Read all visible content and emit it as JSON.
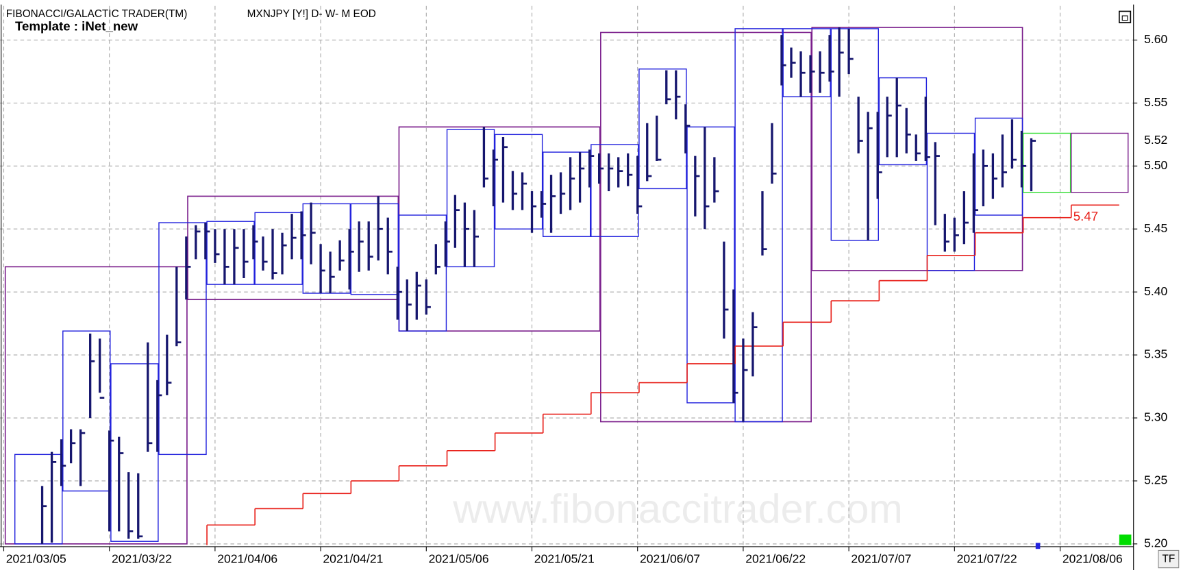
{
  "chart_data": {
    "type": "hlc",
    "title": "FIBONACCI/GALACTIC TRADER(TM)",
    "subtitle": "MXNJPY [Y!] D- W- M EOD",
    "template": "Template : iNet_new",
    "watermark": "www.fibonaccitrader.com",
    "button": "TF",
    "last_price": 5.52,
    "annotation": 5.47,
    "ylim": [
      5.199,
      5.627
    ],
    "yticks": [
      {
        "value": 5.2,
        "label": "5.20"
      },
      5.25,
      {
        "value": 5.3,
        "label": "5.30"
      },
      5.35,
      {
        "value": 5.4,
        "label": "5.40"
      },
      5.45,
      {
        "value": 5.5,
        "label": "5.50"
      },
      5.55,
      {
        "value": 5.6,
        "label": "5.60"
      }
    ],
    "xticks": [
      "2021/03/05",
      "2021/03/22",
      "2021/04/06",
      "2021/04/21",
      "2021/05/06",
      "2021/05/21",
      "2021/06/07",
      "2021/06/22",
      "2021/07/07",
      "2021/07/22",
      "2021/08/06"
    ],
    "grid": true,
    "bar_color": "#16166e",
    "categories": [
      "2021/03/05",
      "2021/03/08",
      "2021/03/09",
      "2021/03/10",
      "2021/03/11",
      "2021/03/12",
      "2021/03/15",
      "2021/03/16",
      "2021/03/17",
      "2021/03/18",
      "2021/03/19",
      "2021/03/22",
      "2021/03/23",
      "2021/03/24",
      "2021/03/25",
      "2021/03/26",
      "2021/03/29",
      "2021/03/30",
      "2021/03/31",
      "2021/04/01",
      "2021/04/02",
      "2021/04/05",
      "2021/04/06",
      "2021/04/07",
      "2021/04/08",
      "2021/04/09",
      "2021/04/12",
      "2021/04/13",
      "2021/04/14",
      "2021/04/15",
      "2021/04/16",
      "2021/04/19",
      "2021/04/20",
      "2021/04/21",
      "2021/04/22",
      "2021/04/23",
      "2021/04/26",
      "2021/04/27",
      "2021/04/28",
      "2021/04/29",
      "2021/04/30",
      "2021/05/03",
      "2021/05/04",
      "2021/05/05",
      "2021/05/06",
      "2021/05/07",
      "2021/05/10",
      "2021/05/11",
      "2021/05/12",
      "2021/05/13",
      "2021/05/14",
      "2021/05/17",
      "2021/05/18",
      "2021/05/19",
      "2021/05/20",
      "2021/05/21",
      "2021/05/24",
      "2021/05/25",
      "2021/05/26",
      "2021/05/27",
      "2021/05/28",
      "2021/05/31",
      "2021/06/01",
      "2021/06/02",
      "2021/06/03",
      "2021/06/04",
      "2021/06/07",
      "2021/06/08",
      "2021/06/09",
      "2021/06/10",
      "2021/06/11",
      "2021/06/14",
      "2021/06/15",
      "2021/06/16",
      "2021/06/17",
      "2021/06/18",
      "2021/06/21",
      "2021/06/22",
      "2021/06/23",
      "2021/06/24",
      "2021/06/25",
      "2021/06/28",
      "2021/06/29",
      "2021/06/30",
      "2021/07/01",
      "2021/07/02",
      "2021/07/05",
      "2021/07/06",
      "2021/07/07",
      "2021/07/08",
      "2021/07/09",
      "2021/07/12",
      "2021/07/13",
      "2021/07/14",
      "2021/07/15",
      "2021/07/16",
      "2021/07/19",
      "2021/07/20",
      "2021/07/21",
      "2021/07/22",
      "2021/07/23",
      "2021/07/26",
      "2021/07/27",
      "2021/07/28",
      "2021/07/29",
      "2021/07/30",
      "2021/08/02",
      "2021/08/03",
      "2021/08/04",
      "2021/08/05",
      "2021/08/06",
      "2021/08/09",
      "2021/08/10",
      "2021/08/11",
      "2021/08/12",
      "2021/08/13",
      "2021/08/16",
      "2021/08/17"
    ],
    "high": [
      null,
      null,
      null,
      null,
      5.246,
      5.273,
      5.283,
      5.291,
      5.291,
      5.367,
      5.363,
      5.29,
      5.285,
      5.257,
      5.256,
      5.36,
      5.33,
      5.366,
      5.42,
      5.444,
      5.453,
      5.455,
      5.45,
      5.45,
      5.45,
      5.45,
      5.453,
      5.444,
      5.45,
      5.447,
      5.462,
      5.464,
      5.471,
      5.438,
      5.432,
      5.441,
      5.45,
      5.456,
      5.456,
      5.476,
      5.459,
      5.42,
      5.41,
      5.416,
      5.41,
      5.438,
      5.456,
      5.477,
      5.471,
      5.465,
      5.531,
      5.513,
      5.523,
      5.496,
      5.495,
      5.48,
      5.48,
      5.493,
      5.495,
      5.507,
      5.511,
      5.513,
      5.51,
      5.51,
      5.507,
      5.51,
      5.508,
      5.534,
      5.54,
      5.576,
      5.576,
      5.549,
      5.508,
      5.531,
      5.507,
      5.44,
      5.402,
      5.363,
      5.384,
      5.48,
      5.534,
      5.604,
      5.594,
      5.591,
      5.588,
      5.591,
      5.604,
      5.61,
      5.609,
      5.555,
      5.543,
      5.543,
      5.555,
      5.57,
      5.546,
      5.525,
      5.555,
      5.519,
      5.462,
      5.459,
      5.48,
      5.51,
      5.513,
      5.51,
      5.525,
      5.537,
      5.528,
      5.522,
      null,
      null,
      null,
      null,
      null,
      null,
      null,
      null,
      null,
      null
    ],
    "low": [
      null,
      null,
      null,
      null,
      5.2,
      5.201,
      5.246,
      5.264,
      5.246,
      5.3,
      5.32,
      5.21,
      5.21,
      5.204,
      5.204,
      5.273,
      5.273,
      5.318,
      5.357,
      5.394,
      5.426,
      5.426,
      5.423,
      5.406,
      5.406,
      5.411,
      5.426,
      5.417,
      5.41,
      5.414,
      5.426,
      5.426,
      5.422,
      5.399,
      5.399,
      5.417,
      5.402,
      5.416,
      5.417,
      5.425,
      5.414,
      5.378,
      5.369,
      5.378,
      5.382,
      5.414,
      5.42,
      5.435,
      5.42,
      5.42,
      5.483,
      5.468,
      5.471,
      5.465,
      5.465,
      5.447,
      5.459,
      5.447,
      5.462,
      5.465,
      5.471,
      5.483,
      5.486,
      5.48,
      5.483,
      5.484,
      5.462,
      5.488,
      5.504,
      5.549,
      5.537,
      5.51,
      5.46,
      5.45,
      5.471,
      5.363,
      5.312,
      5.297,
      5.333,
      5.429,
      5.486,
      5.564,
      5.57,
      5.555,
      5.558,
      5.558,
      5.567,
      5.555,
      5.573,
      5.51,
      5.441,
      5.474,
      5.507,
      5.507,
      5.51,
      5.504,
      5.504,
      5.453,
      5.432,
      5.432,
      5.438,
      5.447,
      5.468,
      5.474,
      5.483,
      5.498,
      5.483,
      5.48,
      null,
      null,
      null,
      null,
      null,
      null,
      null,
      null,
      null,
      null
    ],
    "close": [
      null,
      null,
      null,
      null,
      5.23,
      5.265,
      5.262,
      5.28,
      5.288,
      5.345,
      5.316,
      5.282,
      5.272,
      5.21,
      5.206,
      5.28,
      5.318,
      5.328,
      5.36,
      5.42,
      5.448,
      5.448,
      5.43,
      5.42,
      5.435,
      5.424,
      5.44,
      5.424,
      5.415,
      5.437,
      5.443,
      5.445,
      5.447,
      5.417,
      5.412,
      5.425,
      5.432,
      5.44,
      5.428,
      5.45,
      5.432,
      5.4,
      5.39,
      5.405,
      5.388,
      5.42,
      5.44,
      5.465,
      5.45,
      5.444,
      5.49,
      5.505,
      5.515,
      5.478,
      5.486,
      5.468,
      5.47,
      5.476,
      5.478,
      5.49,
      5.498,
      5.508,
      5.498,
      5.498,
      5.496,
      5.493,
      5.468,
      5.492,
      5.505,
      5.553,
      5.555,
      5.532,
      5.492,
      5.468,
      5.48,
      5.386,
      5.32,
      5.338,
      5.372,
      5.434,
      5.494,
      5.58,
      5.582,
      5.574,
      5.575,
      5.574,
      5.575,
      5.59,
      5.585,
      5.52,
      5.53,
      5.495,
      5.54,
      5.548,
      5.525,
      5.51,
      5.507,
      5.508,
      5.44,
      5.445,
      5.455,
      5.465,
      5.5,
      5.49,
      5.495,
      5.505,
      5.5,
      5.52,
      null,
      null,
      null,
      null,
      null,
      null,
      null,
      null,
      null,
      null
    ],
    "week_color": "#2222dd",
    "weekly_boxes": [
      {
        "start": "2021/03/08",
        "end": "2021/03/15",
        "high": 5.271,
        "low": 5.2
      },
      {
        "start": "2021/03/15",
        "end": "2021/03/22",
        "high": 5.369,
        "low": 5.242
      },
      {
        "start": "2021/03/22",
        "end": "2021/03/29",
        "high": 5.343,
        "low": 5.202
      },
      {
        "start": "2021/03/29",
        "end": "2021/04/05",
        "high": 5.455,
        "low": 5.271
      },
      {
        "start": "2021/04/05",
        "end": "2021/04/12",
        "high": 5.456,
        "low": 5.406
      },
      {
        "start": "2021/04/12",
        "end": "2021/04/19",
        "high": 5.463,
        "low": 5.406
      },
      {
        "start": "2021/04/19",
        "end": "2021/04/26",
        "high": 5.47,
        "low": 5.399
      },
      {
        "start": "2021/04/26",
        "end": "2021/05/03",
        "high": 5.47,
        "low": 5.398
      },
      {
        "start": "2021/05/03",
        "end": "2021/05/10",
        "high": 5.461,
        "low": 5.369
      },
      {
        "start": "2021/05/10",
        "end": "2021/05/17",
        "high": 5.529,
        "low": 5.42
      },
      {
        "start": "2021/05/17",
        "end": "2021/05/24",
        "high": 5.525,
        "low": 5.45
      },
      {
        "start": "2021/05/24",
        "end": "2021/05/31",
        "high": 5.511,
        "low": 5.444
      },
      {
        "start": "2021/05/31",
        "end": "2021/06/07",
        "high": 5.517,
        "low": 5.444
      },
      {
        "start": "2021/06/07",
        "end": "2021/06/14",
        "high": 5.577,
        "low": 5.482
      },
      {
        "start": "2021/06/14",
        "end": "2021/06/21",
        "high": 5.531,
        "low": 5.312
      },
      {
        "start": "2021/06/21",
        "end": "2021/06/28",
        "high": 5.609,
        "low": 5.297
      },
      {
        "start": "2021/06/28",
        "end": "2021/07/05",
        "high": 5.609,
        "low": 5.555
      },
      {
        "start": "2021/07/05",
        "end": "2021/07/12",
        "high": 5.609,
        "low": 5.441
      },
      {
        "start": "2021/07/12",
        "end": "2021/07/19",
        "high": 5.57,
        "low": 5.501
      },
      {
        "start": "2021/07/19",
        "end": "2021/07/26",
        "high": 5.526,
        "low": 5.417
      },
      {
        "start": "2021/07/26",
        "end": "2021/08/02",
        "high": 5.538,
        "low": 5.461
      }
    ],
    "month_color": "#7b1f8c",
    "monthly_boxes": [
      {
        "start": "2021/03/05",
        "end": "2021/04/01",
        "high": 5.42,
        "low": 5.2
      },
      {
        "start": "2021/04/01",
        "end": "2021/05/03",
        "high": 5.476,
        "low": 5.394
      },
      {
        "start": "2021/05/03",
        "end": "2021/06/01",
        "high": 5.531,
        "low": 5.369
      },
      {
        "start": "2021/06/01",
        "end": "2021/07/01",
        "high": 5.606,
        "low": 5.297
      },
      {
        "start": "2021/07/01",
        "end": "2021/08/02",
        "high": 5.61,
        "low": 5.417
      }
    ],
    "projection_boxes": [
      {
        "start": "2021/08/02",
        "end": "2021/08/09",
        "high": 5.526,
        "low": 5.479,
        "color": "#33dd33"
      },
      {
        "start": "2021/08/09",
        "end": "2021/08/17",
        "high": 5.526,
        "low": 5.479,
        "color": "#7b1f8c"
      }
    ],
    "stop_line": {
      "color": "#e8201a",
      "x": [
        "2021/04/05",
        "2021/04/12",
        "2021/04/19",
        "2021/04/26",
        "2021/05/03",
        "2021/05/10",
        "2021/05/17",
        "2021/05/24",
        "2021/05/31",
        "2021/06/07",
        "2021/06/14",
        "2021/06/21",
        "2021/06/28",
        "2021/07/05",
        "2021/07/12",
        "2021/07/19",
        "2021/07/26",
        "2021/08/02",
        "2021/08/09"
      ],
      "values": [
        5.215,
        5.228,
        5.24,
        5.25,
        5.262,
        5.274,
        5.288,
        5.303,
        5.32,
        5.328,
        5.343,
        5.357,
        5.376,
        5.393,
        5.409,
        5.429,
        5.447,
        5.459,
        5.469
      ]
    }
  }
}
